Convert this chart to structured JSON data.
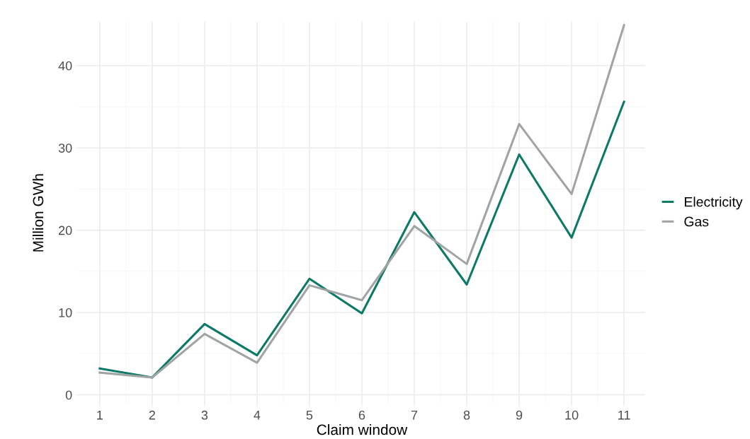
{
  "chart_data": {
    "type": "line",
    "xlabel": "Claim window",
    "ylabel": "Million GWh",
    "x": [
      1,
      2,
      3,
      4,
      5,
      6,
      7,
      8,
      9,
      10,
      11
    ],
    "xlim": [
      0.6,
      11.4
    ],
    "xticks": [
      1,
      2,
      3,
      4,
      5,
      6,
      7,
      8,
      9,
      10,
      11
    ],
    "ylim": [
      -1.1,
      45.3
    ],
    "yticks": [
      0,
      10,
      20,
      30,
      40
    ],
    "grid": true,
    "legend": "right",
    "line_style": "solid",
    "series": [
      {
        "name": "Electricity",
        "color": "#0b7a66",
        "values": [
          3.2,
          2.1,
          8.6,
          4.8,
          14.1,
          9.9,
          22.2,
          13.4,
          29.2,
          19.1,
          35.6
        ]
      },
      {
        "name": "Gas",
        "color": "#a0a4a4",
        "values": [
          2.7,
          2.1,
          7.4,
          3.9,
          13.3,
          11.5,
          20.5,
          15.9,
          32.9,
          24.4,
          44.9
        ]
      }
    ]
  }
}
